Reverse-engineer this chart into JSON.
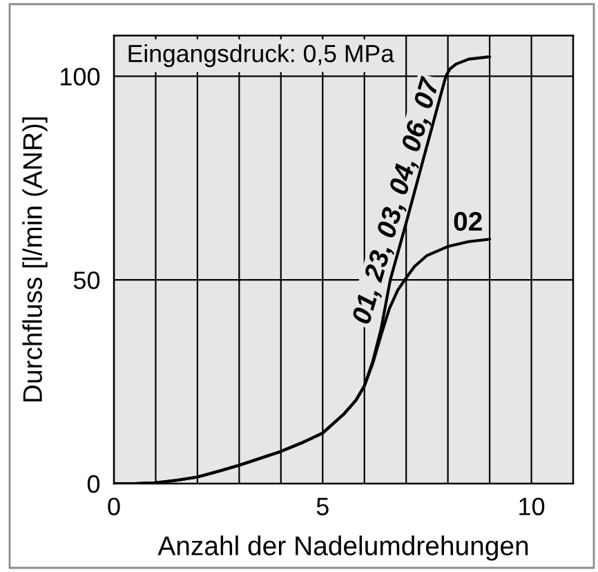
{
  "chart_data": {
    "type": "line",
    "xlabel": "Anzahl der Nadelumdrehungen",
    "ylabel": "Durchfluss [l/min (ANR)]",
    "annotations": [
      "Eingangsdruck: 0,5 MPa"
    ],
    "xlim": [
      0,
      11
    ],
    "ylim": [
      0,
      110
    ],
    "xticks": [
      0,
      {
        "value": 1,
        "label": null
      },
      {
        "value": 2,
        "label": null
      },
      {
        "value": 3,
        "label": null
      },
      {
        "value": 4,
        "label": null
      },
      5,
      {
        "value": 6,
        "label": null
      },
      {
        "value": 7,
        "label": null
      },
      {
        "value": 8,
        "label": null
      },
      {
        "value": 9,
        "label": null
      },
      10
    ],
    "yticks": [
      0,
      50,
      100
    ],
    "grid": true,
    "series": [
      {
        "name": "01, 23, 03, 04, 06, 07",
        "color": "#000000",
        "x": [
          0,
          0.5,
          1,
          1.5,
          2,
          2.5,
          3,
          3.5,
          4,
          4.5,
          5,
          5.5,
          5.8,
          6,
          6.2,
          6.4,
          6.62,
          7,
          7.5,
          7.95,
          8.05,
          8.2,
          8.5,
          9
        ],
        "values": [
          0,
          0,
          0.2,
          0.8,
          1.6,
          3,
          4.5,
          6.2,
          7.9,
          10,
          12.4,
          17,
          20.5,
          24,
          30,
          38,
          50,
          64,
          83,
          100,
          101.8,
          103,
          104.2,
          104.8
        ]
      },
      {
        "name": "02",
        "color": "#000000",
        "x": [
          0,
          0.5,
          1,
          1.5,
          2,
          2.5,
          3,
          3.5,
          4,
          4.5,
          5,
          5.5,
          5.8,
          6,
          6.2,
          6.4,
          6.6,
          6.8,
          7,
          7.2,
          7.5,
          8,
          8.5,
          9
        ],
        "values": [
          0,
          0,
          0.2,
          0.8,
          1.6,
          3,
          4.5,
          6.2,
          7.9,
          10,
          12.4,
          17,
          20.5,
          24,
          29.5,
          36.5,
          43,
          47.5,
          50.5,
          53.3,
          56,
          58.2,
          59.4,
          60
        ]
      }
    ]
  }
}
